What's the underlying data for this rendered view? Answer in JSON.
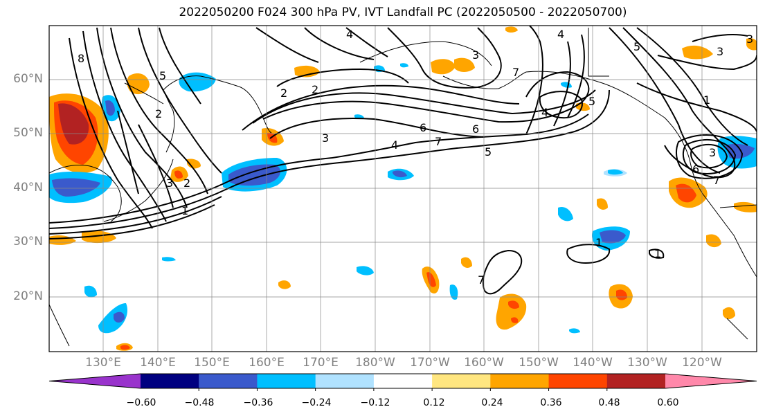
{
  "title": "2022050200 F024 300 hPa PV, IVT Landfall PC (2022050500 - 2022050700)",
  "lat_labels": [
    "60°N",
    "50°N",
    "40°N",
    "30°N",
    "20°N"
  ],
  "lon_labels": [
    "130°E",
    "140°E",
    "150°E",
    "160°E",
    "170°E",
    "180°W",
    "170°W",
    "160°W",
    "150°W",
    "140°W",
    "130°W",
    "120°W"
  ],
  "colorbar": {
    "ticks": [
      "−0.60",
      "−0.48",
      "−0.36",
      "−0.24",
      "−0.12",
      "0.12",
      "0.24",
      "0.36",
      "0.48",
      "0.60"
    ],
    "colors": [
      "#9933cc",
      "#000080",
      "#3a5acc",
      "#00bfff",
      "#b0e2ff",
      "#ffffff",
      "#ffe680",
      "#ffa500",
      "#ff4500",
      "#b22222",
      "#ff88aa"
    ]
  },
  "pv_contour_labels": [
    "8",
    "5",
    "2",
    "4",
    "3",
    "2",
    "6",
    "7",
    "6",
    "5",
    "4",
    "4",
    "5",
    "3",
    "4",
    "1",
    "2",
    "3",
    "7",
    "5",
    "2",
    "1",
    "7",
    "3",
    "6",
    "3",
    "1",
    "7",
    "1",
    "3"
  ]
}
